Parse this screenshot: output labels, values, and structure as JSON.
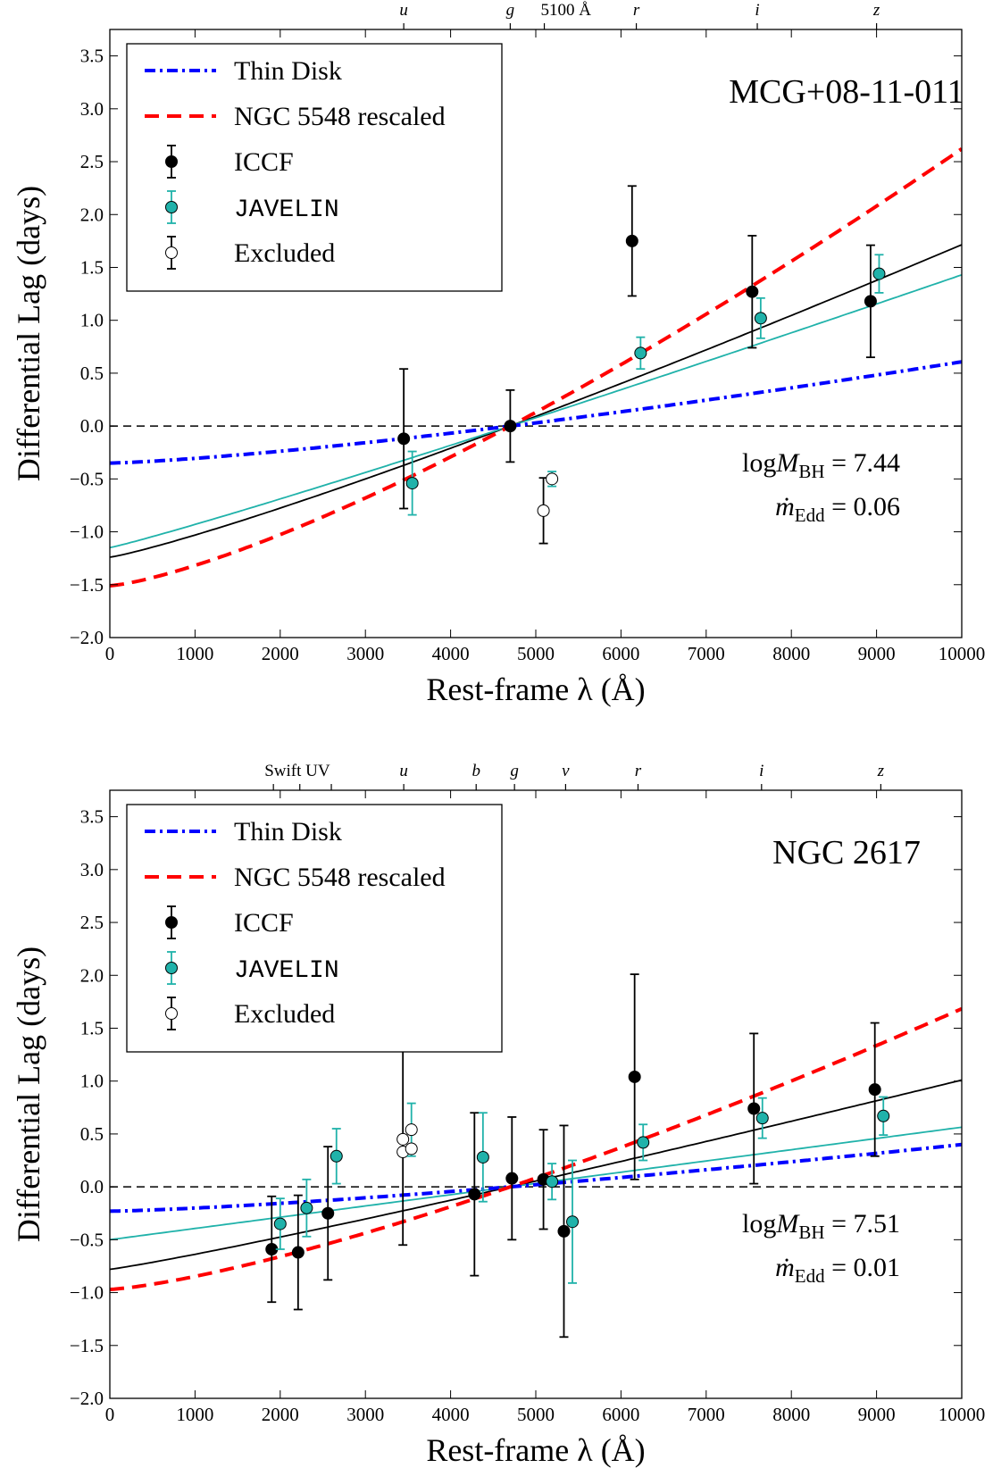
{
  "chart_data": [
    {
      "type": "scatter",
      "object_name": "MCG+08-11-011",
      "xlabel": "Rest-frame λ (Å)",
      "ylabel": "Differential Lag (days)",
      "xlim": [
        0,
        10000
      ],
      "ylim": [
        -2.0,
        3.75
      ],
      "xticks": [
        0,
        1000,
        2000,
        3000,
        4000,
        5000,
        6000,
        7000,
        8000,
        9000,
        10000
      ],
      "yticks": [
        -2.0,
        -1.5,
        -1.0,
        -0.5,
        0.0,
        0.5,
        1.0,
        1.5,
        2.0,
        2.5,
        3.0,
        3.5
      ],
      "grid": false,
      "legend_position": "top-left",
      "legend": [
        "Thin Disk",
        "NGC 5548 rescaled",
        "ICCF",
        "JAVELIN",
        "Excluded"
      ],
      "annotation": {
        "logM": "7.44",
        "mdot": "0.06"
      },
      "top_labels": [
        {
          "x": 3450,
          "label": "u",
          "italic": true
        },
        {
          "x": 4700,
          "label": "g",
          "italic": true
        },
        {
          "x": 5100,
          "label": "5100 Å",
          "italic": false
        },
        {
          "x": 6180,
          "label": "r",
          "italic": true
        },
        {
          "x": 7600,
          "label": "i",
          "italic": true
        },
        {
          "x": 9000,
          "label": "z",
          "italic": true
        }
      ],
      "top_ticks": [
        3450,
        4700,
        5100,
        6180,
        7600,
        9000
      ],
      "curves": {
        "thin_disk": {
          "color": "#0000ff",
          "y0": -0.35,
          "x_ref": 4700,
          "power": 1.333
        },
        "ngc5548": {
          "color": "#ff0000",
          "y0": -1.51,
          "x_ref": 4700,
          "power": 1.333
        },
        "iccf_fit": {
          "color": "#000000",
          "y0": -1.24,
          "x_ref": 4700,
          "power": 1.15
        },
        "javelin_fit": {
          "color": "#20b2aa",
          "y0": -1.15,
          "x_ref": 4700,
          "power": 1.07
        }
      },
      "series": [
        {
          "name": "ICCF",
          "points": [
            {
              "x": 3450,
              "y": -0.12,
              "err": 0.66
            },
            {
              "x": 4700,
              "y": 0.0,
              "err": 0.34
            },
            {
              "x": 6130,
              "y": 1.75,
              "err": 0.52
            },
            {
              "x": 7540,
              "y": 1.27,
              "err": 0.53
            },
            {
              "x": 8930,
              "y": 1.18,
              "err": 0.53
            }
          ]
        },
        {
          "name": "JAVELIN",
          "points": [
            {
              "x": 3550,
              "y": -0.54,
              "err": 0.3
            },
            {
              "x": 6230,
              "y": 0.69,
              "err": 0.15
            },
            {
              "x": 7640,
              "y": 1.02,
              "err": 0.19
            },
            {
              "x": 9030,
              "y": 1.44,
              "err": 0.18
            }
          ]
        },
        {
          "name": "Excluded",
          "points": [
            {
              "x": 5090,
              "y": -0.8,
              "err": 0.31,
              "errcolor": "#000000"
            },
            {
              "x": 5190,
              "y": -0.5,
              "err": 0.07,
              "errcolor": "#20b2aa"
            }
          ]
        }
      ]
    },
    {
      "type": "scatter",
      "object_name": "NGC 2617",
      "xlabel": "Rest-frame λ (Å)",
      "ylabel": "Differential Lag (days)",
      "xlim": [
        0,
        10000
      ],
      "ylim": [
        -2.0,
        3.75
      ],
      "xticks": [
        0,
        1000,
        2000,
        3000,
        4000,
        5000,
        6000,
        7000,
        8000,
        9000,
        10000
      ],
      "yticks": [
        -2.0,
        -1.5,
        -1.0,
        -0.5,
        0.0,
        0.5,
        1.0,
        1.5,
        2.0,
        2.5,
        3.0,
        3.5
      ],
      "grid": false,
      "legend_position": "top-left",
      "legend": [
        "Thin Disk",
        "NGC 5548 rescaled",
        "ICCF",
        "JAVELIN",
        "Excluded"
      ],
      "annotation": {
        "logM": "7.51",
        "mdot": "0.01"
      },
      "top_labels": [
        {
          "x": 2200,
          "label": "Swift UV",
          "italic": false
        },
        {
          "x": 3450,
          "label": "u",
          "italic": true
        },
        {
          "x": 4300,
          "label": "b",
          "italic": true
        },
        {
          "x": 4750,
          "label": "g",
          "italic": true
        },
        {
          "x": 5350,
          "label": "v",
          "italic": true
        },
        {
          "x": 6200,
          "label": "r",
          "italic": true
        },
        {
          "x": 7650,
          "label": "i",
          "italic": true
        },
        {
          "x": 9050,
          "label": "z",
          "italic": true
        }
      ],
      "top_ticks": [
        1920,
        2230,
        2600,
        3450,
        4300,
        4750,
        5350,
        6200,
        7650,
        9050
      ],
      "curves": {
        "thin_disk": {
          "color": "#0000ff",
          "y0": -0.23,
          "x_ref": 4700,
          "power": 1.333
        },
        "ngc5548": {
          "color": "#ff0000",
          "y0": -0.97,
          "x_ref": 4700,
          "power": 1.333
        },
        "iccf_fit": {
          "color": "#000000",
          "y0": -0.78,
          "x_ref": 4700,
          "power": 1.1
        },
        "javelin_fit": {
          "color": "#20b2aa",
          "y0": -0.5,
          "x_ref": 4700,
          "power": 1.0
        }
      },
      "series": [
        {
          "name": "ICCF",
          "points": [
            {
              "x": 1900,
              "y": -0.59,
              "err": 0.5
            },
            {
              "x": 2210,
              "y": -0.62,
              "err": 0.54
            },
            {
              "x": 2560,
              "y": -0.25,
              "err": 0.63
            },
            {
              "x": 4280,
              "y": -0.07,
              "err": 0.77
            },
            {
              "x": 4720,
              "y": 0.08,
              "err": 0.58
            },
            {
              "x": 5090,
              "y": 0.07,
              "err": 0.47
            },
            {
              "x": 5330,
              "y": -0.42,
              "err": 1.0
            },
            {
              "x": 6160,
              "y": 1.04,
              "err": 0.97
            },
            {
              "x": 7560,
              "y": 0.74,
              "err": 0.71
            },
            {
              "x": 8980,
              "y": 0.92,
              "err": 0.63
            }
          ]
        },
        {
          "name": "JAVELIN",
          "points": [
            {
              "x": 2000,
              "y": -0.35,
              "err": 0.24
            },
            {
              "x": 2310,
              "y": -0.2,
              "err": 0.27
            },
            {
              "x": 2660,
              "y": 0.29,
              "err": 0.26
            },
            {
              "x": 4380,
              "y": 0.28,
              "err": 0.42
            },
            {
              "x": 5190,
              "y": 0.05,
              "err": 0.17
            },
            {
              "x": 5430,
              "y": -0.33,
              "err": 0.58
            },
            {
              "x": 6260,
              "y": 0.42,
              "err": 0.17
            },
            {
              "x": 7660,
              "y": 0.65,
              "err": 0.19
            },
            {
              "x": 9080,
              "y": 0.67,
              "err": 0.18
            }
          ]
        },
        {
          "name": "Excluded",
          "points": [
            {
              "x": 3440,
              "y": 0.45,
              "err": 1.0,
              "errcolor": "#000000"
            },
            {
              "x": 3440,
              "y": 0.33,
              "err": 0.0,
              "errcolor": "#000000"
            },
            {
              "x": 3540,
              "y": 0.54,
              "err": 0.25,
              "errcolor": "#20b2aa"
            },
            {
              "x": 3540,
              "y": 0.36,
              "err": 0.0,
              "errcolor": "#20b2aa"
            }
          ]
        }
      ]
    }
  ]
}
